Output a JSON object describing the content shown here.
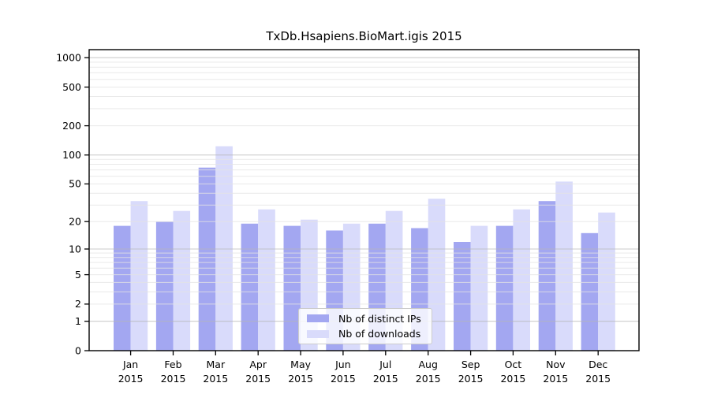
{
  "chart_data": {
    "type": "bar",
    "title": "TxDb.Hsapiens.BioMart.igis 2015",
    "months": [
      "Jan",
      "Feb",
      "Mar",
      "Apr",
      "May",
      "Jun",
      "Jul",
      "Aug",
      "Sep",
      "Oct",
      "Nov",
      "Dec"
    ],
    "year": "2015",
    "series": [
      {
        "name": "Nb of distinct IPs",
        "color": "#a3a7f1",
        "values": [
          18,
          20,
          74,
          19,
          18,
          16,
          19,
          17,
          12,
          18,
          33,
          15
        ]
      },
      {
        "name": "Nb of downloads",
        "color": "#d9dbfb",
        "values": [
          33,
          26,
          123,
          27,
          21,
          19,
          26,
          35,
          18,
          27,
          53,
          25
        ]
      }
    ],
    "y_scale": "log10(1+x)",
    "y_ticks": [
      0,
      1,
      2,
      5,
      10,
      20,
      50,
      100,
      200,
      500,
      1000
    ],
    "y_major_gridlines": [
      1,
      10,
      100,
      1000
    ],
    "ylim": [
      0,
      1200
    ],
    "xlabel": "",
    "ylabel": "",
    "grid": "on",
    "legend_position": "lower center",
    "colors": {
      "major_grid": "#b5b5b5",
      "minor_grid": "#e4e4e4",
      "spine": "#000000",
      "tick_label": "#000000"
    }
  }
}
